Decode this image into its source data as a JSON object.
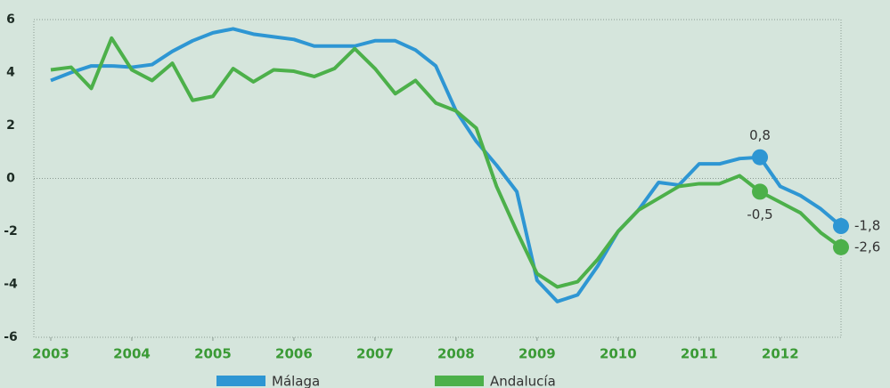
{
  "chart_data": {
    "type": "line",
    "x": [
      2003,
      2003.25,
      2003.5,
      2003.75,
      2004,
      2004.25,
      2004.5,
      2004.75,
      2005,
      2005.25,
      2005.5,
      2005.75,
      2006,
      2006.25,
      2006.5,
      2006.75,
      2007,
      2007.25,
      2007.5,
      2007.75,
      2008,
      2008.25,
      2008.5,
      2008.75,
      2009,
      2009.25,
      2009.5,
      2009.75,
      2010,
      2010.25,
      2010.5,
      2010.75,
      2011,
      2011.25,
      2011.5,
      2011.75,
      2012,
      2012.25,
      2012.5,
      2012.75
    ],
    "series": [
      {
        "name": "Málaga",
        "color": "#2e96d3",
        "values": [
          3.7,
          4.0,
          4.25,
          4.25,
          4.2,
          4.3,
          4.8,
          5.2,
          5.5,
          5.65,
          5.45,
          5.35,
          5.25,
          5.0,
          5.0,
          5.0,
          5.2,
          5.2,
          4.85,
          4.25,
          2.55,
          1.4,
          0.5,
          -0.5,
          -3.85,
          -4.65,
          -4.4,
          -3.3,
          -2.0,
          -1.2,
          -0.15,
          -0.25,
          0.55,
          0.55,
          0.75,
          0.8,
          -0.3,
          -0.65,
          -1.15,
          -1.8
        ],
        "value_labels": [
          null,
          null,
          null,
          null,
          null,
          null,
          null,
          null,
          null,
          null,
          null,
          null,
          null,
          null,
          null,
          null,
          null,
          null,
          null,
          null,
          null,
          null,
          null,
          null,
          null,
          null,
          null,
          null,
          null,
          null,
          null,
          null,
          null,
          null,
          null,
          "0,8",
          null,
          null,
          null,
          "-1,8"
        ]
      },
      {
        "name": "Andalucía",
        "color": "#4cb04a",
        "values": [
          4.1,
          4.2,
          3.4,
          5.3,
          4.1,
          3.7,
          4.35,
          2.95,
          3.1,
          4.15,
          3.65,
          4.1,
          4.05,
          3.85,
          4.15,
          4.9,
          4.15,
          3.2,
          3.7,
          2.85,
          2.55,
          1.9,
          -0.3,
          -2.0,
          -3.6,
          -4.1,
          -3.9,
          -3.05,
          -2.0,
          -1.2,
          -0.75,
          -0.3,
          -0.2,
          -0.2,
          0.1,
          -0.5,
          -0.9,
          -1.3,
          -2.05,
          -2.6
        ],
        "value_labels": [
          null,
          null,
          null,
          null,
          null,
          null,
          null,
          null,
          null,
          null,
          null,
          null,
          null,
          null,
          null,
          null,
          null,
          null,
          null,
          null,
          null,
          null,
          null,
          null,
          null,
          null,
          null,
          null,
          null,
          null,
          null,
          null,
          null,
          null,
          null,
          "-0,5",
          null,
          null,
          null,
          "-2,6"
        ]
      }
    ],
    "xlim": [
      2003,
      2012.75
    ],
    "xticks": [
      2003,
      2004,
      2005,
      2006,
      2007,
      2008,
      2009,
      2010,
      2011,
      2012
    ],
    "ylim": [
      -6,
      6
    ],
    "yticks": [
      -6,
      -4,
      -2,
      0,
      2,
      4,
      6
    ],
    "zero_line": true
  }
}
